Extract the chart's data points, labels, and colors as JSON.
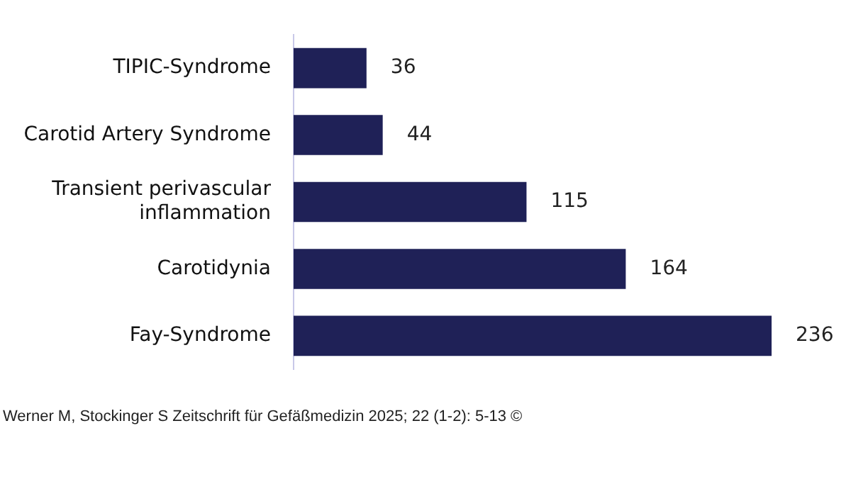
{
  "chart_data": {
    "type": "bar",
    "orientation": "horizontal",
    "categories": [
      "TIPIC-Syndrome",
      "Carotid Artery Syndrome",
      "Transient perivascular inflammation",
      "Carotidynia",
      "Fay-Syndrome"
    ],
    "values": [
      36,
      44,
      115,
      164,
      236
    ],
    "color": "#1f2157",
    "data_labels": true,
    "annotations": [
      "Werner M, Stockinger S Zeitschrift für Gefäßmedizin 2025; 22 (1-2): 5-13 ©"
    ]
  }
}
